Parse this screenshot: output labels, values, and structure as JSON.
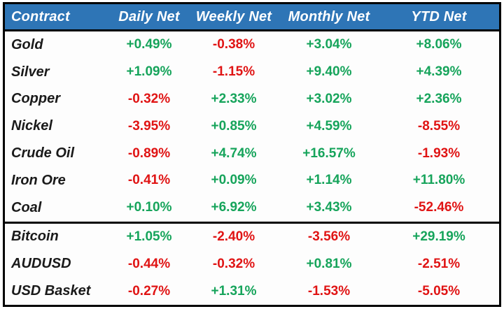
{
  "table": {
    "columns": [
      {
        "label": "Contract"
      },
      {
        "label": "Daily Net"
      },
      {
        "label": "Weekly Net"
      },
      {
        "label": "Monthly Net"
      },
      {
        "label": "YTD Net"
      }
    ],
    "groups": [
      {
        "rows": [
          {
            "contract": "Gold",
            "values": [
              "+0.49%",
              "-0.38%",
              "+3.04%",
              "+8.06%"
            ]
          },
          {
            "contract": "Silver",
            "values": [
              "+1.09%",
              "-1.15%",
              "+9.40%",
              "+4.39%"
            ]
          },
          {
            "contract": "Copper",
            "values": [
              "-0.32%",
              "+2.33%",
              "+3.02%",
              "+2.36%"
            ]
          },
          {
            "contract": "Nickel",
            "values": [
              "-3.95%",
              "+0.85%",
              "+4.59%",
              "-8.55%"
            ]
          },
          {
            "contract": "Crude Oil",
            "values": [
              "-0.89%",
              "+4.74%",
              "+16.57%",
              "-1.93%"
            ]
          },
          {
            "contract": "Iron Ore",
            "values": [
              "-0.41%",
              "+0.09%",
              "+1.14%",
              "+11.80%"
            ]
          },
          {
            "contract": "Coal",
            "values": [
              "+0.10%",
              "+6.92%",
              "+3.43%",
              "-52.46%"
            ]
          }
        ]
      },
      {
        "rows": [
          {
            "contract": "Bitcoin",
            "values": [
              "+1.05%",
              "-2.40%",
              "-3.56%",
              "+29.19%"
            ]
          },
          {
            "contract": "AUDUSD",
            "values": [
              "-0.44%",
              "-0.32%",
              "+0.81%",
              "-2.51%"
            ]
          },
          {
            "contract": "USD Basket",
            "values": [
              "-0.27%",
              "+1.31%",
              "-1.53%",
              "-5.05%"
            ]
          }
        ]
      }
    ],
    "colors": {
      "header_bg": "#2E75B6",
      "header_text": "#FFFFFF",
      "positive": "#16A45B",
      "negative": "#E01414",
      "contract_text": "#1A1A1A",
      "border": "#000000"
    }
  }
}
